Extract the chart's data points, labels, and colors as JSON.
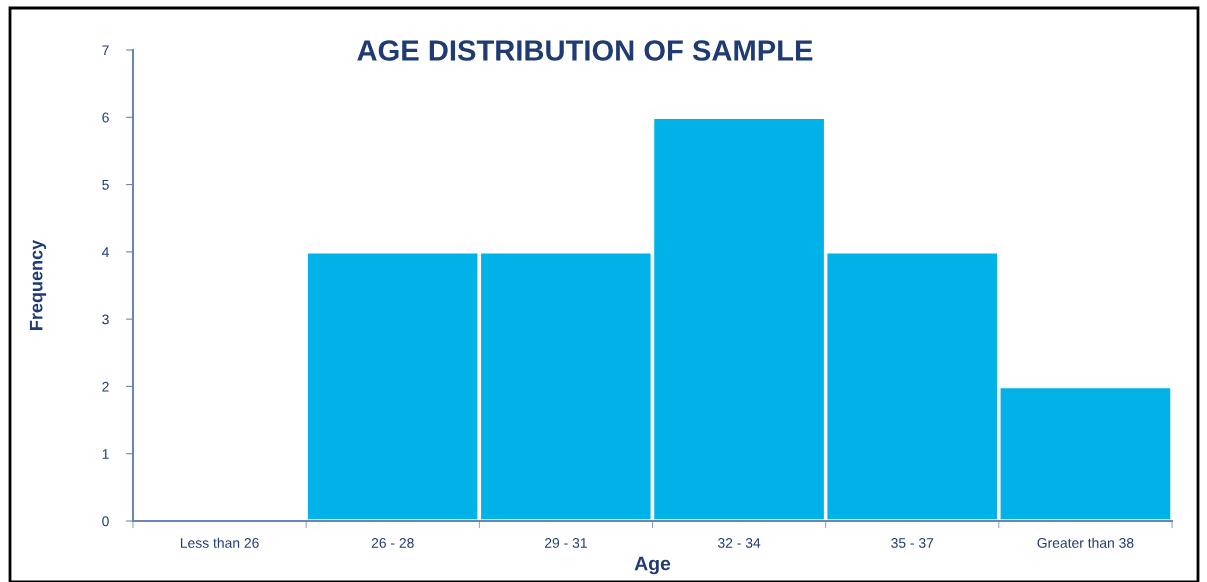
{
  "chart_data": {
    "type": "bar",
    "title": "AGE DISTRIBUTION OF SAMPLE",
    "xlabel": "Age",
    "ylabel": "Frequency",
    "categories": [
      "Less than 26",
      "26 - 28",
      "29 - 31",
      "32 - 34",
      "35 - 37",
      "Greater than 38"
    ],
    "values": [
      0,
      4,
      4,
      6,
      4,
      2
    ],
    "color": "#00b2e8",
    "ylim": [
      0,
      7
    ],
    "yticks": [
      0,
      1,
      2,
      3,
      4,
      5,
      6,
      7
    ],
    "grid": false,
    "legend": false
  }
}
